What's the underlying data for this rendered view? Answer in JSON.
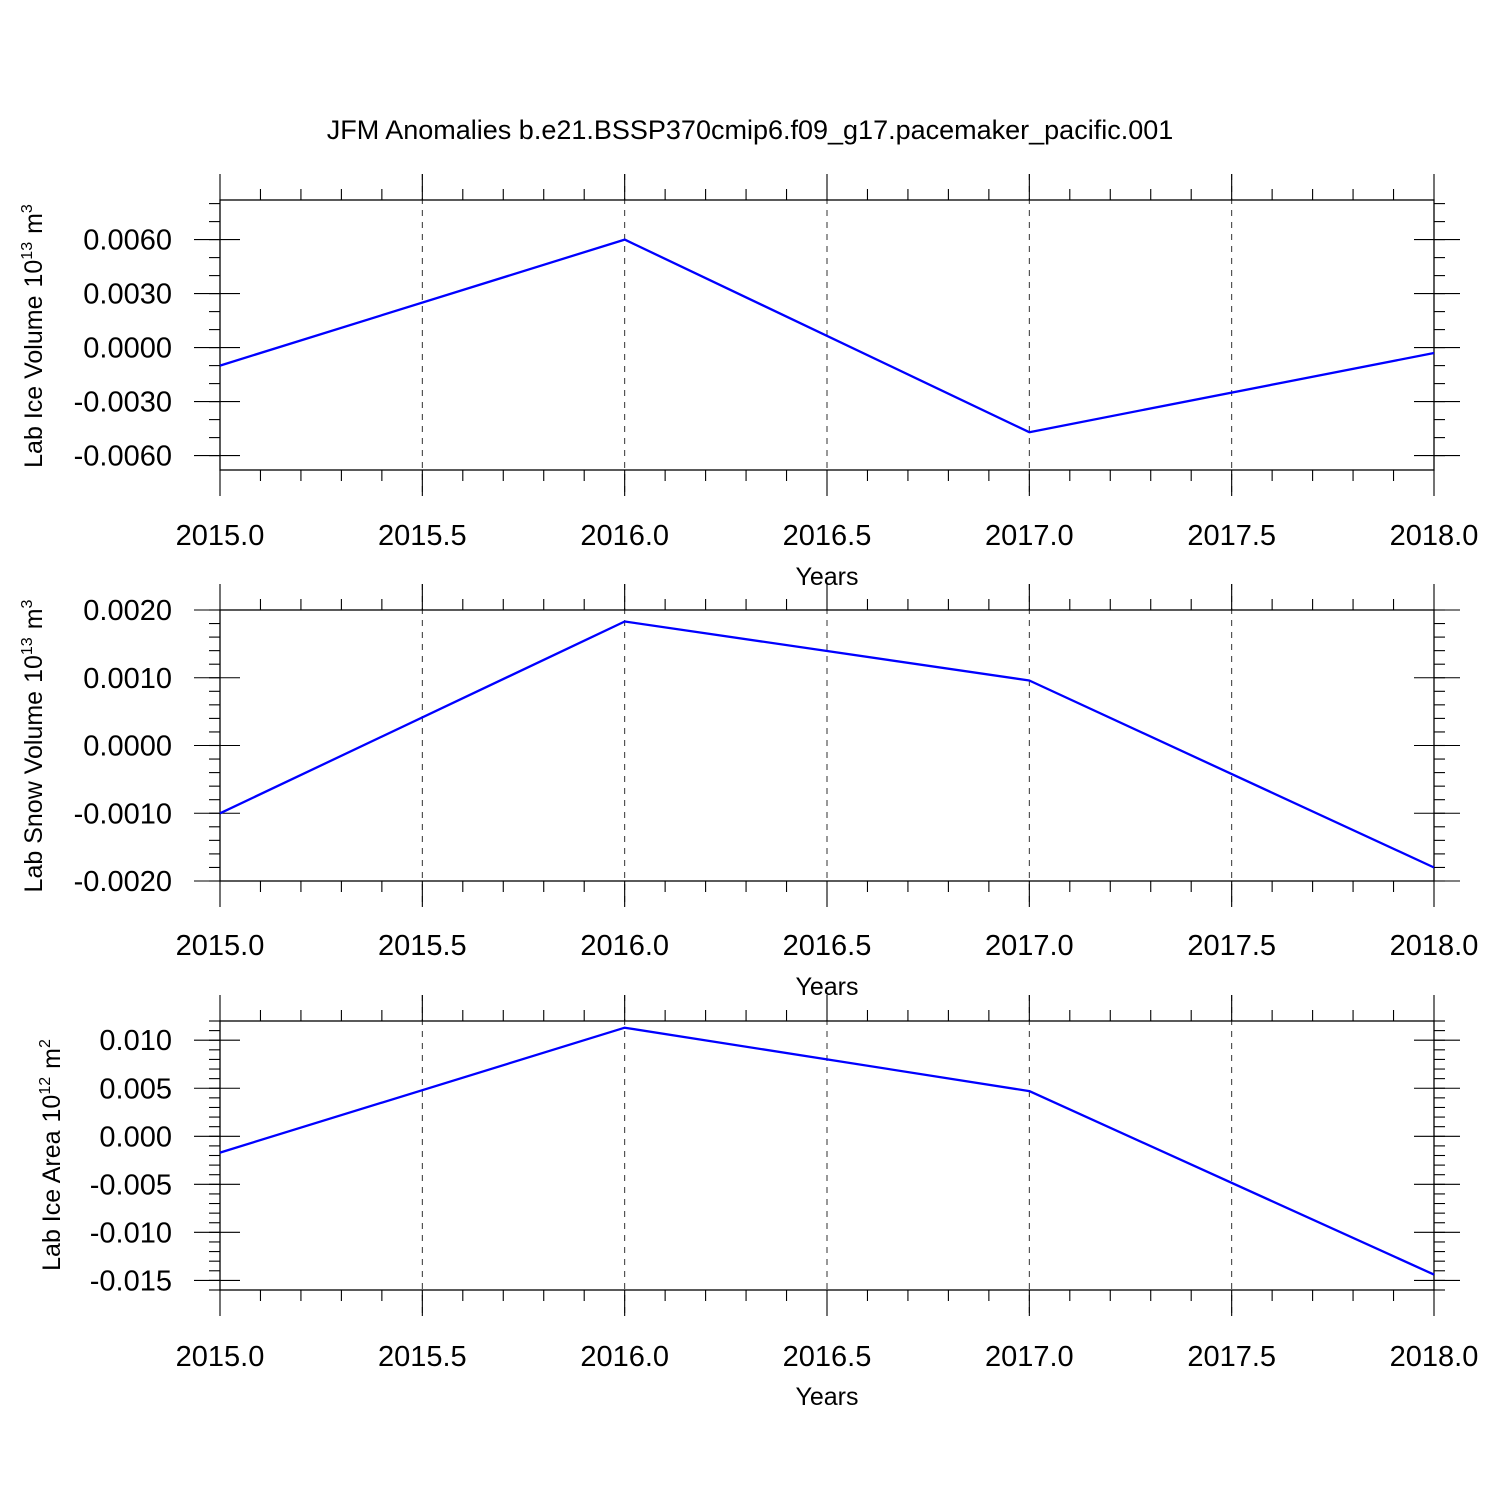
{
  "title": "JFM Anomalies b.e21.BSSP370cmip6.f09_g17.pacemaker_pacific.001",
  "colors": {
    "series": "#0000ff",
    "axis": "#000000"
  },
  "chart_data": [
    {
      "type": "line",
      "ylabel": "Lab Ice Volume",
      "ylabel_unit_base": "10",
      "ylabel_unit_exp": "13",
      "ylabel_unit_tail": "m",
      "ylabel_unit_tail_exp": "3",
      "xlabel": "Years",
      "xlim": [
        2015.0,
        2018.0
      ],
      "ylim": [
        -0.0068,
        0.0082
      ],
      "xticks": [
        2015.0,
        2015.5,
        2016.0,
        2016.5,
        2017.0,
        2017.5,
        2018.0
      ],
      "xtick_labels": [
        "2015.0",
        "2015.5",
        "2016.0",
        "2016.5",
        "2017.0",
        "2017.5",
        "2018.0"
      ],
      "yticks": [
        0.006,
        0.003,
        0.0,
        -0.003,
        -0.006
      ],
      "ytick_labels": [
        "0.0060",
        "0.0030",
        "0.0000",
        "-0.0030",
        "-0.0060"
      ],
      "y_minor_step": 0.001,
      "grid": "vertical dashed",
      "series": [
        {
          "x": [
            2015,
            2016,
            2017,
            2018
          ],
          "values": [
            -0.001,
            0.006,
            -0.0047,
            -0.0003
          ]
        }
      ]
    },
    {
      "type": "line",
      "ylabel": "Lab Snow Volume",
      "ylabel_unit_base": "10",
      "ylabel_unit_exp": "13",
      "ylabel_unit_tail": "m",
      "ylabel_unit_tail_exp": "3",
      "xlabel": "Years",
      "xlim": [
        2015.0,
        2018.0
      ],
      "ylim": [
        -0.002,
        0.002
      ],
      "xticks": [
        2015.0,
        2015.5,
        2016.0,
        2016.5,
        2017.0,
        2017.5,
        2018.0
      ],
      "xtick_labels": [
        "2015.0",
        "2015.5",
        "2016.0",
        "2016.5",
        "2017.0",
        "2017.5",
        "2018.0"
      ],
      "yticks": [
        0.002,
        0.001,
        0.0,
        -0.001,
        -0.002
      ],
      "ytick_labels": [
        "0.0020",
        "0.0010",
        "0.0000",
        "-0.0010",
        "-0.0020"
      ],
      "y_minor_step": 0.0002,
      "grid": "vertical dashed",
      "series": [
        {
          "x": [
            2015,
            2016,
            2017,
            2018
          ],
          "values": [
            -0.001,
            0.00183,
            0.00096,
            -0.0018
          ]
        }
      ]
    },
    {
      "type": "line",
      "ylabel": "Lab Ice Area",
      "ylabel_unit_base": "10",
      "ylabel_unit_exp": "12",
      "ylabel_unit_tail": "m",
      "ylabel_unit_tail_exp": "2",
      "xlabel": "Years",
      "xlim": [
        2015.0,
        2018.0
      ],
      "ylim": [
        -0.016,
        0.012
      ],
      "xticks": [
        2015.0,
        2015.5,
        2016.0,
        2016.5,
        2017.0,
        2017.5,
        2018.0
      ],
      "xtick_labels": [
        "2015.0",
        "2015.5",
        "2016.0",
        "2016.5",
        "2017.0",
        "2017.5",
        "2018.0"
      ],
      "yticks": [
        0.01,
        0.005,
        0.0,
        -0.005,
        -0.01,
        -0.015
      ],
      "ytick_labels": [
        "0.010",
        "0.005",
        "0.000",
        "-0.005",
        "-0.010",
        "-0.015"
      ],
      "y_minor_step": 0.001,
      "grid": "vertical dashed",
      "series": [
        {
          "x": [
            2015,
            2016,
            2017,
            2018
          ],
          "values": [
            -0.0017,
            0.0113,
            0.0047,
            -0.0144
          ]
        }
      ]
    }
  ]
}
